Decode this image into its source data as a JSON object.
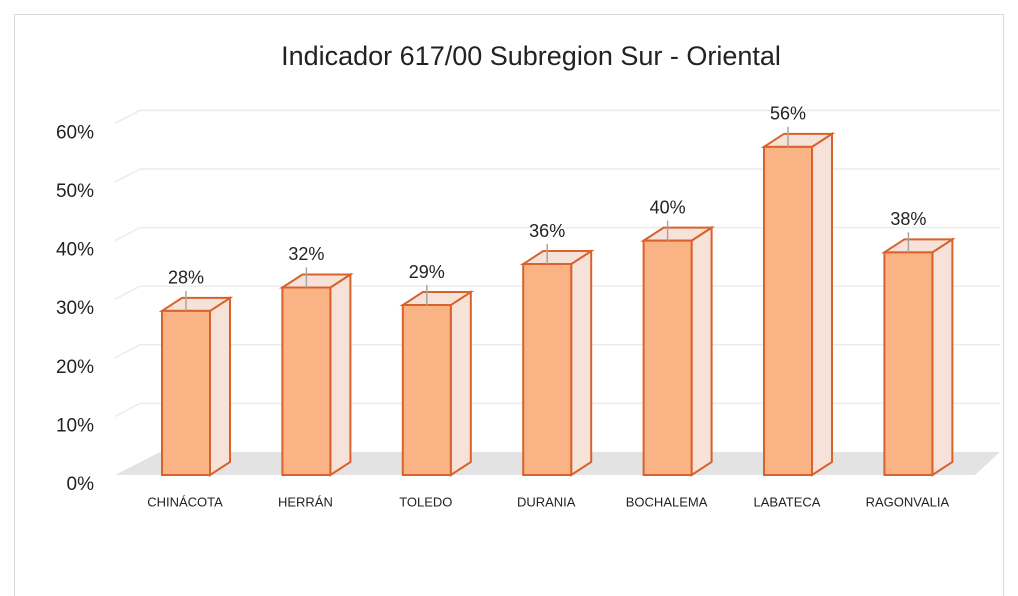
{
  "chart_data": {
    "type": "bar3d",
    "title": "Indicador 617/00 Subregion Sur - Oriental",
    "categories": [
      "CHINÁCOTA",
      "HERRÁN",
      "TOLEDO",
      "DURANIA",
      "BOCHALEMA",
      "LABATECA",
      "RAGONVALIA"
    ],
    "values": [
      28,
      32,
      29,
      36,
      40,
      56,
      38
    ],
    "value_labels": [
      "28%",
      "32%",
      "29%",
      "36%",
      "40%",
      "56%",
      "38%"
    ],
    "color": "#f9b384",
    "ylim": [
      0,
      60
    ],
    "yticks": [
      {
        "value": 0,
        "label": "0%"
      },
      {
        "value": 10,
        "label": "10%"
      },
      {
        "value": 20,
        "label": "20%"
      },
      {
        "value": 30,
        "label": "30%"
      },
      {
        "value": 40,
        "label": "40%"
      },
      {
        "value": 50,
        "label": "50%"
      },
      {
        "value": 60,
        "label": "60%"
      }
    ],
    "grid": true
  }
}
